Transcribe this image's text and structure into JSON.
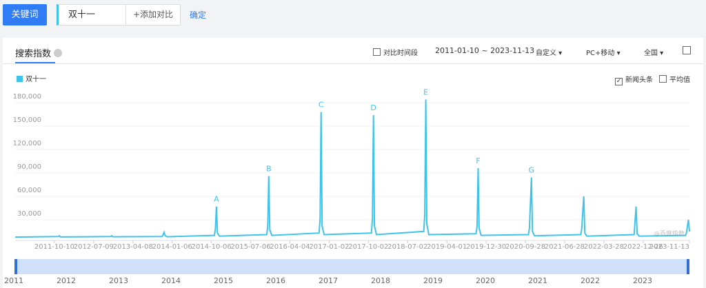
{
  "ui": {
    "keyword_button": "关键词",
    "keyword_input": "双十一",
    "add_compare": "+添加对比",
    "confirm": "确定",
    "tab": "搜索指数",
    "compare_period": "对比时间段",
    "date_range": "2011-01-10 ~ 2023-11-13",
    "custom": "自定义",
    "device": "PC+移动",
    "region": "全国",
    "news": "新闻头条",
    "average": "平均值",
    "watermark": "@百度指数",
    "slider_years": [
      "2011",
      "2012",
      "2013",
      "2014",
      "2015",
      "2016",
      "2017",
      "2018",
      "2019",
      "2020",
      "2021",
      "2022",
      "2023"
    ]
  },
  "chart_data": {
    "type": "line",
    "xlim": [
      "2011-01-10",
      "2023-11-13"
    ],
    "xticks": [
      "2011-10-10",
      "2012-07-09",
      "2013-04-08",
      "2014-01-06",
      "2014-10-06",
      "2015-07-06",
      "2016-04-04",
      "2017-01-02",
      "2017-10-02",
      "2018-07-02",
      "2019-04-01",
      "2019-12-30",
      "2020-09-28",
      "2021-06-28",
      "2022-03-28",
      "2022-12-26",
      "2023-11-13"
    ],
    "ylim": [
      0,
      195000
    ],
    "yticks": [
      {
        "value": 30000,
        "label": "30,000"
      },
      {
        "value": 60000,
        "label": "60,000"
      },
      {
        "value": 90000,
        "label": "90,000"
      },
      {
        "value": 120000,
        "label": "120,000"
      },
      {
        "value": 150000,
        "label": "150,000"
      },
      {
        "value": 180000,
        "label": "180,000"
      }
    ],
    "grid": true,
    "series": [
      {
        "name": "双十一",
        "color": "#3ec3ec",
        "x": [
          "2011-01-10",
          "2011-11-07",
          "2011-11-14",
          "2011-11-21",
          "2012-11-05",
          "2012-11-12",
          "2012-11-19",
          "2013-10-28",
          "2013-11-04",
          "2013-11-11",
          "2013-11-18",
          "2013-12-02",
          "2014-10-27",
          "2014-11-03",
          "2014-11-10",
          "2014-11-17",
          "2014-12-01",
          "2015-10-26",
          "2015-11-02",
          "2015-11-09",
          "2015-11-16",
          "2015-11-30",
          "2016-10-24",
          "2016-10-31",
          "2016-11-07",
          "2016-11-14",
          "2016-11-28",
          "2017-10-23",
          "2017-10-30",
          "2017-11-06",
          "2017-11-13",
          "2017-11-27",
          "2018-10-22",
          "2018-10-29",
          "2018-11-05",
          "2018-11-12",
          "2018-11-26",
          "2019-10-21",
          "2019-10-28",
          "2019-11-04",
          "2019-11-11",
          "2019-11-25",
          "2020-10-19",
          "2020-10-26",
          "2020-11-09",
          "2020-11-16",
          "2020-11-30",
          "2021-10-18",
          "2021-10-25",
          "2021-11-08",
          "2021-11-15",
          "2021-11-29",
          "2022-10-24",
          "2022-11-07",
          "2022-11-14",
          "2022-11-28",
          "2023-10-16",
          "2023-10-23",
          "2023-11-06",
          "2023-11-13"
        ],
        "values": [
          800,
          1500,
          2500,
          1000,
          1500,
          2500,
          1200,
          1500,
          4000,
          7000,
          2500,
          1200,
          3000,
          12000,
          40000,
          6000,
          2000,
          4000,
          15000,
          79000,
          10000,
          3000,
          6000,
          25000,
          161000,
          15000,
          4000,
          6000,
          25000,
          157000,
          15000,
          4000,
          8000,
          30000,
          177000,
          18000,
          4000,
          5000,
          15000,
          89000,
          12000,
          3000,
          4000,
          12000,
          77000,
          8000,
          2500,
          4000,
          12000,
          53000,
          6000,
          2000,
          4000,
          40000,
          5000,
          2000,
          3000,
          6000,
          23000,
          8000
        ]
      }
    ],
    "annotations": [
      {
        "text": "A",
        "x": "2014-11-10"
      },
      {
        "text": "B",
        "x": "2015-11-09"
      },
      {
        "text": "C",
        "x": "2016-11-07"
      },
      {
        "text": "D",
        "x": "2017-11-06"
      },
      {
        "text": "E",
        "x": "2018-11-05"
      },
      {
        "text": "F",
        "x": "2019-11-04"
      },
      {
        "text": "G",
        "x": "2020-11-09"
      }
    ]
  }
}
